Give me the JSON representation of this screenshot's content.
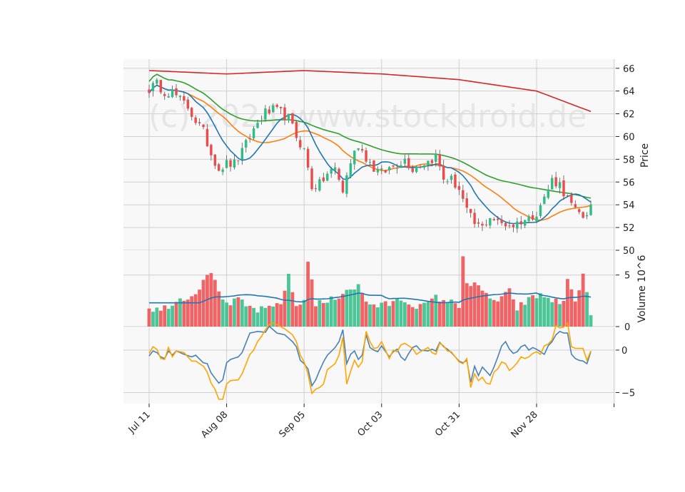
{
  "watermark": "(c) 2024 www.stockdroid.de",
  "chart_data": {
    "type": "candlestick",
    "x_tick_labels": [
      "Jul 11",
      "Aug 08",
      "Sep 05",
      "Oct 03",
      "Oct 31",
      "Nov 28"
    ],
    "x_tick_bar_index": [
      0,
      20,
      40,
      60,
      80,
      100,
      120
    ],
    "panels": {
      "price": {
        "ylabel": "Price",
        "ylim": [
          50,
          66.8
        ],
        "yticks": [
          50,
          52,
          54,
          56,
          58,
          60,
          62,
          64,
          66
        ]
      },
      "volume": {
        "ylabel": "Volume  10^6",
        "ylim": [
          0,
          7.4
        ],
        "yticks": [
          0,
          5
        ]
      },
      "oscillator": {
        "ylim": [
          -6.3,
          2.6
        ],
        "yticks": [
          -5,
          0
        ]
      }
    },
    "colors": {
      "up": "#2ebd85",
      "down": "#f0494a",
      "ma_fast": "#1f77b4",
      "ma_mid": "#ff7f0e",
      "ma_slow": "#2ca02c",
      "ma_long": "#d62728",
      "osc_a": "#4682b4",
      "osc_b": "#ffa500"
    },
    "price_anchors": [
      [
        0,
        64.2
      ],
      [
        2,
        64.6
      ],
      [
        4,
        64.0
      ],
      [
        6,
        63.9
      ],
      [
        8,
        63.2
      ],
      [
        10,
        62.6
      ],
      [
        12,
        61.4
      ],
      [
        14,
        60.4
      ],
      [
        16,
        58.5
      ],
      [
        18,
        57.2
      ],
      [
        20,
        57.6
      ],
      [
        22,
        57.6
      ],
      [
        24,
        58.6
      ],
      [
        26,
        60.0
      ],
      [
        28,
        61.2
      ],
      [
        30,
        62.1
      ],
      [
        32,
        62.3
      ],
      [
        34,
        62.1
      ],
      [
        36,
        61.6
      ],
      [
        38,
        60.0
      ],
      [
        40,
        58.8
      ],
      [
        42,
        55.6
      ],
      [
        44,
        55.8
      ],
      [
        46,
        56.7
      ],
      [
        48,
        57.2
      ],
      [
        50,
        55.2
      ],
      [
        52,
        57.8
      ],
      [
        54,
        59.3
      ],
      [
        56,
        58.2
      ],
      [
        58,
        57.2
      ],
      [
        60,
        56.8
      ],
      [
        62,
        57.2
      ],
      [
        64,
        57.6
      ],
      [
        66,
        58.0
      ],
      [
        68,
        57.2
      ],
      [
        70,
        57.6
      ],
      [
        72,
        57.8
      ],
      [
        74,
        58.3
      ],
      [
        76,
        56.3
      ],
      [
        78,
        56.2
      ],
      [
        80,
        55.4
      ],
      [
        82,
        53.4
      ],
      [
        84,
        52.3
      ],
      [
        86,
        52.0
      ],
      [
        88,
        53.0
      ],
      [
        90,
        52.4
      ],
      [
        92,
        52.3
      ],
      [
        94,
        52.2
      ],
      [
        96,
        52.6
      ],
      [
        98,
        52.8
      ],
      [
        100,
        53.4
      ],
      [
        102,
        54.6
      ],
      [
        104,
        56.2
      ],
      [
        106,
        55.8
      ],
      [
        108,
        54.5
      ],
      [
        110,
        53.4
      ],
      [
        112,
        53.0
      ],
      [
        114,
        53.8
      ]
    ],
    "volume_anchors": [
      [
        0,
        1.8
      ],
      [
        3,
        1.6
      ],
      [
        6,
        2.3
      ],
      [
        9,
        2.8
      ],
      [
        12,
        3.2
      ],
      [
        15,
        5.3
      ],
      [
        17,
        4.5
      ],
      [
        20,
        2.0
      ],
      [
        23,
        2.6
      ],
      [
        25,
        2.0
      ],
      [
        28,
        1.6
      ],
      [
        31,
        1.7
      ],
      [
        34,
        2.4
      ],
      [
        36,
        4.8
      ],
      [
        38,
        2.0
      ],
      [
        40,
        2.5
      ],
      [
        41,
        6.6
      ],
      [
        43,
        2.2
      ],
      [
        46,
        2.4
      ],
      [
        49,
        3.0
      ],
      [
        51,
        3.6
      ],
      [
        54,
        3.9
      ],
      [
        56,
        2.4
      ],
      [
        59,
        2.0
      ],
      [
        62,
        2.2
      ],
      [
        65,
        2.7
      ],
      [
        68,
        2.1
      ],
      [
        71,
        2.0
      ],
      [
        74,
        2.8
      ],
      [
        77,
        2.5
      ],
      [
        80,
        2.0
      ],
      [
        81,
        7.1
      ],
      [
        82,
        4.2
      ],
      [
        84,
        4.0
      ],
      [
        87,
        3.1
      ],
      [
        90,
        2.4
      ],
      [
        93,
        3.4
      ],
      [
        95,
        1.8
      ],
      [
        98,
        2.6
      ],
      [
        101,
        3.1
      ],
      [
        104,
        2.6
      ],
      [
        107,
        2.2
      ],
      [
        108,
        4.8
      ],
      [
        110,
        2.3
      ],
      [
        112,
        5.3
      ],
      [
        114,
        0.8
      ]
    ],
    "oscillator_a_anchors": [
      [
        0,
        -0.7
      ],
      [
        1,
        -0.1
      ],
      [
        2,
        -0.3
      ],
      [
        3,
        -0.8
      ],
      [
        4,
        -1.0
      ],
      [
        5,
        -0.1
      ],
      [
        6,
        -0.6
      ],
      [
        7,
        -0.1
      ],
      [
        9,
        -0.5
      ],
      [
        11,
        -0.8
      ],
      [
        12,
        -0.6
      ],
      [
        14,
        -1.5
      ],
      [
        15,
        -1.6
      ],
      [
        16,
        -2.7
      ],
      [
        18,
        -3.9
      ],
      [
        19,
        -3.5
      ],
      [
        20,
        -1.5
      ],
      [
        21,
        -1.1
      ],
      [
        23,
        -0.8
      ],
      [
        24,
        -0.3
      ],
      [
        26,
        2.0
      ],
      [
        28,
        2.2
      ],
      [
        30,
        2.1
      ],
      [
        31,
        2.8
      ],
      [
        32,
        2.4
      ],
      [
        33,
        2.0
      ],
      [
        35,
        1.8
      ],
      [
        37,
        1.0
      ],
      [
        38,
        0.4
      ],
      [
        39,
        -1.2
      ],
      [
        40,
        -1.6
      ],
      [
        41,
        -2.2
      ],
      [
        42,
        -4.2
      ],
      [
        43,
        -3.5
      ],
      [
        44,
        -2.4
      ],
      [
        45,
        -1.4
      ],
      [
        46,
        -0.6
      ],
      [
        48,
        0.3
      ],
      [
        49,
        1.0
      ],
      [
        50,
        2.4
      ],
      [
        51,
        -1.6
      ],
      [
        52,
        -0.5
      ],
      [
        53,
        -0.1
      ],
      [
        54,
        -1.1
      ],
      [
        55,
        -0.6
      ],
      [
        56,
        1.8
      ],
      [
        57,
        0.3
      ],
      [
        58,
        0.0
      ],
      [
        59,
        -0.2
      ],
      [
        60,
        0.5
      ],
      [
        62,
        -0.8
      ],
      [
        63,
        -0.2
      ],
      [
        64,
        0.1
      ],
      [
        65,
        -0.8
      ],
      [
        66,
        -1.2
      ],
      [
        67,
        -0.4
      ],
      [
        68,
        0.3
      ],
      [
        69,
        0.5
      ],
      [
        70,
        0.0
      ],
      [
        72,
        -0.1
      ],
      [
        73,
        0.1
      ],
      [
        74,
        -0.1
      ],
      [
        75,
        0.9
      ],
      [
        76,
        0.4
      ],
      [
        77,
        0.1
      ],
      [
        78,
        -0.3
      ],
      [
        79,
        -0.8
      ],
      [
        80,
        -1.3
      ],
      [
        81,
        -1.5
      ],
      [
        82,
        -1.2
      ],
      [
        83,
        -3.8
      ],
      [
        84,
        -1.9
      ],
      [
        85,
        -3.0
      ],
      [
        86,
        -2.0
      ],
      [
        87,
        -2.5
      ],
      [
        88,
        -3.0
      ],
      [
        89,
        -2.0
      ],
      [
        90,
        -0.8
      ],
      [
        91,
        0.5
      ],
      [
        92,
        1.0
      ],
      [
        93,
        0.1
      ],
      [
        94,
        -0.4
      ],
      [
        95,
        -0.2
      ],
      [
        96,
        0.4
      ],
      [
        97,
        0.6
      ],
      [
        98,
        0.0
      ],
      [
        99,
        0.3
      ],
      [
        100,
        0.1
      ],
      [
        101,
        -0.2
      ],
      [
        102,
        -0.5
      ],
      [
        103,
        0.5
      ],
      [
        104,
        1.0
      ],
      [
        105,
        1.8
      ],
      [
        106,
        2.2
      ],
      [
        107,
        2.0
      ],
      [
        108,
        2.0
      ],
      [
        109,
        -0.5
      ],
      [
        110,
        -1.0
      ],
      [
        111,
        -1.2
      ],
      [
        112,
        -1.3
      ],
      [
        113,
        -1.6
      ],
      [
        114,
        -0.2
      ]
    ],
    "oscillator_b_anchors": [
      [
        0,
        -0.4
      ],
      [
        1,
        0.4
      ],
      [
        2,
        0.1
      ],
      [
        3,
        -1.0
      ],
      [
        4,
        -1.1
      ],
      [
        5,
        0.3
      ],
      [
        6,
        -0.8
      ],
      [
        7,
        -0.1
      ],
      [
        9,
        -0.3
      ],
      [
        11,
        -1.3
      ],
      [
        12,
        -1.3
      ],
      [
        14,
        -1.9
      ],
      [
        15,
        -2.6
      ],
      [
        16,
        -3.9
      ],
      [
        17,
        -4.6
      ],
      [
        18,
        -5.8
      ],
      [
        19,
        -5.8
      ],
      [
        20,
        -4.0
      ],
      [
        21,
        -3.6
      ],
      [
        23,
        -3.5
      ],
      [
        24,
        -2.8
      ],
      [
        26,
        -0.5
      ],
      [
        27,
        0.0
      ],
      [
        28,
        1.0
      ],
      [
        29,
        1.6
      ],
      [
        30,
        2.4
      ],
      [
        31,
        3.0
      ],
      [
        32,
        3.2
      ],
      [
        33,
        3.0
      ],
      [
        35,
        2.5
      ],
      [
        37,
        1.8
      ],
      [
        38,
        1.0
      ],
      [
        39,
        -0.6
      ],
      [
        40,
        -1.4
      ],
      [
        41,
        -2.8
      ],
      [
        42,
        -5.1
      ],
      [
        43,
        -4.6
      ],
      [
        44,
        -4.4
      ],
      [
        45,
        -4.0
      ],
      [
        46,
        -2.3
      ],
      [
        48,
        -1.6
      ],
      [
        49,
        -0.6
      ],
      [
        50,
        1.5
      ],
      [
        51,
        -4.0
      ],
      [
        52,
        -2.5
      ],
      [
        53,
        -1.2
      ],
      [
        54,
        -2.0
      ],
      [
        55,
        -1.4
      ],
      [
        56,
        2.2
      ],
      [
        57,
        1.0
      ],
      [
        58,
        0.2
      ],
      [
        59,
        0.3
      ],
      [
        60,
        1.0
      ],
      [
        62,
        -1.0
      ],
      [
        63,
        0.0
      ],
      [
        64,
        -0.2
      ],
      [
        65,
        0.6
      ],
      [
        66,
        0.8
      ],
      [
        67,
        0.5
      ],
      [
        68,
        0.2
      ],
      [
        69,
        -0.5
      ],
      [
        70,
        -0.2
      ],
      [
        72,
        0.3
      ],
      [
        73,
        -0.3
      ],
      [
        74,
        -0.5
      ],
      [
        75,
        0.8
      ],
      [
        76,
        0.5
      ],
      [
        77,
        -0.1
      ],
      [
        78,
        -0.2
      ],
      [
        79,
        -0.8
      ],
      [
        80,
        -1.4
      ],
      [
        81,
        -1.6
      ],
      [
        82,
        -1.0
      ],
      [
        83,
        -4.4
      ],
      [
        84,
        -2.8
      ],
      [
        85,
        -3.6
      ],
      [
        86,
        -3.2
      ],
      [
        87,
        -3.9
      ],
      [
        88,
        -4.0
      ],
      [
        89,
        -2.6
      ],
      [
        90,
        -2.2
      ],
      [
        91,
        -1.4
      ],
      [
        92,
        -1.6
      ],
      [
        93,
        -2.4
      ],
      [
        94,
        -2.0
      ],
      [
        95,
        -1.5
      ],
      [
        96,
        -0.8
      ],
      [
        97,
        -1.0
      ],
      [
        98,
        -0.8
      ],
      [
        99,
        -0.4
      ],
      [
        100,
        -0.2
      ],
      [
        101,
        -0.5
      ],
      [
        102,
        0.5
      ],
      [
        103,
        0.7
      ],
      [
        104,
        1.2
      ],
      [
        105,
        2.9
      ],
      [
        106,
        2.6
      ],
      [
        107,
        2.7
      ],
      [
        108,
        3.2
      ],
      [
        109,
        0.4
      ],
      [
        110,
        0.2
      ],
      [
        111,
        0.2
      ],
      [
        112,
        0.2
      ],
      [
        113,
        -1.2
      ],
      [
        114,
        -0.1
      ]
    ]
  }
}
